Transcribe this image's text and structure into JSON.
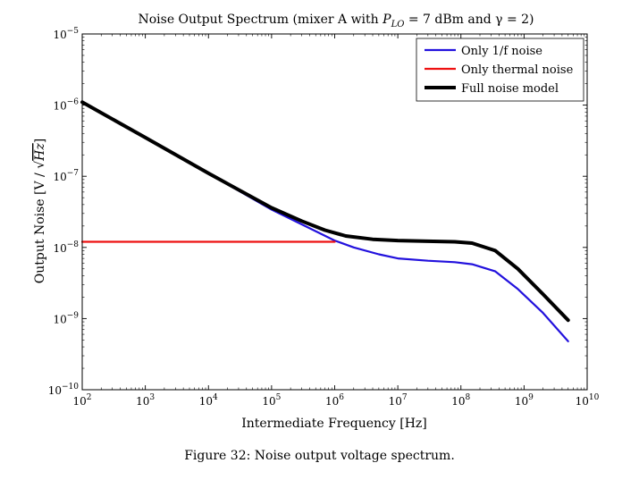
{
  "chart_data": {
    "type": "line",
    "title_text": "Noise Output Spectrum (mixer A with ",
    "title_math_var": "P",
    "title_math_sub": "LO",
    "title_rest": " = 7 dBm and γ = 2)",
    "xlabel": "Intermediate Frequency [Hz]",
    "ylabel_prefix": "Output Noise [V / ",
    "ylabel_radicand": "Hz",
    "ylabel_suffix": "]",
    "x_scale": "log",
    "y_scale": "log",
    "xlim": [
      100,
      10000000000
    ],
    "ylim": [
      1e-10,
      1e-05
    ],
    "x_ticks": [
      {
        "value": 100,
        "base": "10",
        "exp": "2"
      },
      {
        "value": 1000,
        "base": "10",
        "exp": "3"
      },
      {
        "value": 10000,
        "base": "10",
        "exp": "4"
      },
      {
        "value": 100000,
        "base": "10",
        "exp": "5"
      },
      {
        "value": 1000000,
        "base": "10",
        "exp": "6"
      },
      {
        "value": 10000000,
        "base": "10",
        "exp": "7"
      },
      {
        "value": 100000000,
        "base": "10",
        "exp": "8"
      },
      {
        "value": 1000000000,
        "base": "10",
        "exp": "9"
      },
      {
        "value": 10000000000,
        "base": "10",
        "exp": "10"
      }
    ],
    "y_ticks": [
      {
        "value": 1e-10,
        "base": "10",
        "exp": "−10"
      },
      {
        "value": 1e-09,
        "base": "10",
        "exp": "−9"
      },
      {
        "value": 1e-08,
        "base": "10",
        "exp": "−8"
      },
      {
        "value": 1e-07,
        "base": "10",
        "exp": "−7"
      },
      {
        "value": 1e-06,
        "base": "10",
        "exp": "−6"
      },
      {
        "value": 1e-05,
        "base": "10",
        "exp": "−5"
      }
    ],
    "legend_position": "top-right",
    "series": [
      {
        "name": "Only 1/f noise",
        "color": "#2211dd",
        "x": [
          100,
          1000,
          10000,
          100000,
          1000000,
          2000000,
          5000000,
          10000000,
          30000000,
          80000000,
          150000000,
          350000000,
          800000000,
          2000000000,
          5000000000
        ],
        "y": [
          1.1e-06,
          3.5e-07,
          1.1e-07,
          3.4e-08,
          1.25e-08,
          1e-08,
          8e-09,
          7e-09,
          6.5e-09,
          6.2e-09,
          5.8e-09,
          4.6e-09,
          2.6e-09,
          1.2e-09,
          4.8e-10
        ]
      },
      {
        "name": "Only thermal noise",
        "color": "#ee1111",
        "x": [
          100,
          1000,
          10000,
          100000,
          1000000
        ],
        "y": [
          1.2e-08,
          1.2e-08,
          1.2e-08,
          1.2e-08,
          1.2e-08
        ]
      },
      {
        "name": "Full noise model",
        "color": "#000000",
        "x": [
          100,
          1000,
          10000,
          100000,
          300000,
          700000,
          1500000,
          4000000,
          10000000,
          30000000,
          80000000,
          150000000,
          350000000,
          800000000,
          2000000000,
          5000000000
        ],
        "y": [
          1.1e-06,
          3.5e-07,
          1.1e-07,
          3.6e-08,
          2.35e-08,
          1.75e-08,
          1.45e-08,
          1.3e-08,
          1.25e-08,
          1.22e-08,
          1.2e-08,
          1.15e-08,
          9e-09,
          5e-09,
          2.2e-09,
          9.5e-10
        ]
      }
    ]
  },
  "caption": "Figure 32: Noise output voltage spectrum."
}
